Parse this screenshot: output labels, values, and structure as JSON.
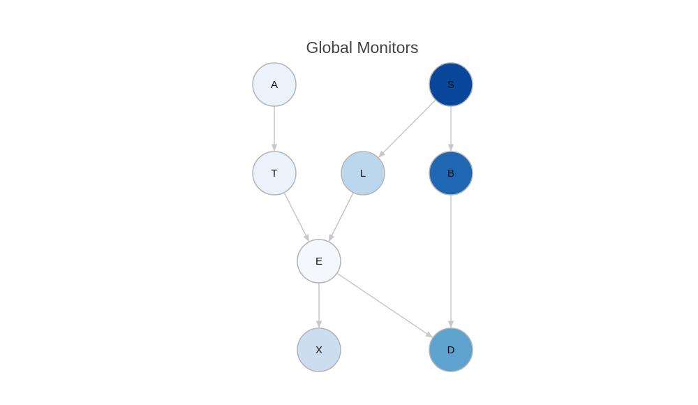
{
  "title": "Global Monitors",
  "colors": {
    "edge": "#c8c8c8",
    "node_stroke": "#b4b4b4",
    "label": "#111111"
  },
  "nodes": [
    {
      "id": "A",
      "label": "A",
      "fill": "#eaf2fb"
    },
    {
      "id": "S",
      "label": "S",
      "fill": "#08479a"
    },
    {
      "id": "T",
      "label": "T",
      "fill": "#eaf2fb"
    },
    {
      "id": "L",
      "label": "L",
      "fill": "#bcd7eb"
    },
    {
      "id": "B",
      "label": "B",
      "fill": "#1f68b1"
    },
    {
      "id": "E",
      "label": "E",
      "fill": "#f4f8fd"
    },
    {
      "id": "X",
      "label": "X",
      "fill": "#cbddef"
    },
    {
      "id": "D",
      "label": "D",
      "fill": "#5ea3d0"
    }
  ],
  "edges": [
    {
      "from": "A",
      "to": "T"
    },
    {
      "from": "S",
      "to": "L"
    },
    {
      "from": "S",
      "to": "B"
    },
    {
      "from": "T",
      "to": "E"
    },
    {
      "from": "L",
      "to": "E"
    },
    {
      "from": "B",
      "to": "D"
    },
    {
      "from": "E",
      "to": "X"
    },
    {
      "from": "E",
      "to": "D"
    }
  ]
}
